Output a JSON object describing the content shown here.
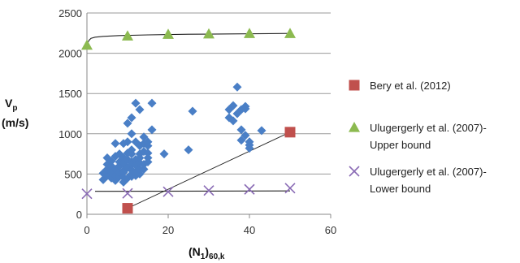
{
  "chart_data": {
    "type": "scatter",
    "title": "",
    "xlabel": {
      "main": "(N",
      "sub1": "1",
      "paren": ")",
      "sub2": "60,k"
    },
    "ylabel": {
      "line1": "V",
      "line1_sub": "p",
      "line2": "(m/s)"
    },
    "xlim": [
      0,
      60
    ],
    "ylim": [
      0,
      2500
    ],
    "x_ticks": [
      0,
      20,
      40,
      60
    ],
    "y_ticks": [
      0,
      500,
      1000,
      1500,
      2000,
      2500
    ],
    "grid": "horizontal",
    "legend_position": "right",
    "series": [
      {
        "marker": "diamond",
        "color": "#4a7fc6",
        "points": [
          [
            4,
            430
          ],
          [
            4,
            510
          ],
          [
            5,
            480
          ],
          [
            5,
            560
          ],
          [
            5,
            620
          ],
          [
            5,
            700
          ],
          [
            6,
            450
          ],
          [
            6,
            530
          ],
          [
            6,
            600
          ],
          [
            6,
            660
          ],
          [
            7,
            420
          ],
          [
            7,
            560
          ],
          [
            7,
            720
          ],
          [
            7,
            880
          ],
          [
            7,
            480
          ],
          [
            8,
            470
          ],
          [
            8,
            520
          ],
          [
            8,
            600
          ],
          [
            8,
            750
          ],
          [
            8,
            650
          ],
          [
            9,
            400
          ],
          [
            9,
            540
          ],
          [
            9,
            620
          ],
          [
            9,
            700
          ],
          [
            9,
            880
          ],
          [
            9,
            520
          ],
          [
            9,
            460
          ],
          [
            9,
            640
          ],
          [
            10,
            580
          ],
          [
            10,
            680
          ],
          [
            10,
            900
          ],
          [
            10,
            1130
          ],
          [
            10,
            450
          ],
          [
            10,
            760
          ],
          [
            11,
            470
          ],
          [
            11,
            550
          ],
          [
            11,
            650
          ],
          [
            11,
            750
          ],
          [
            11,
            1000
          ],
          [
            11,
            1200
          ],
          [
            11,
            800
          ],
          [
            11,
            620
          ],
          [
            11,
            500
          ],
          [
            12,
            480
          ],
          [
            12,
            520
          ],
          [
            12,
            680
          ],
          [
            12,
            900
          ],
          [
            12,
            1380
          ],
          [
            12,
            610
          ],
          [
            13,
            500
          ],
          [
            13,
            560
          ],
          [
            13,
            640
          ],
          [
            13,
            750
          ],
          [
            13,
            850
          ],
          [
            13,
            1300
          ],
          [
            13,
            700
          ],
          [
            14,
            560
          ],
          [
            14,
            620
          ],
          [
            14,
            780
          ],
          [
            14,
            880
          ],
          [
            14,
            960
          ],
          [
            15,
            650
          ],
          [
            15,
            700
          ],
          [
            15,
            850
          ],
          [
            15,
            900
          ],
          [
            15,
            760
          ],
          [
            16,
            1050
          ],
          [
            16,
            1380
          ],
          [
            19,
            750
          ],
          [
            25,
            800
          ],
          [
            26,
            1280
          ],
          [
            35,
            1200
          ],
          [
            35,
            1300
          ],
          [
            36,
            1350
          ],
          [
            36,
            1160
          ],
          [
            37,
            1580
          ],
          [
            37,
            1250
          ],
          [
            38,
            1300
          ],
          [
            38,
            1050
          ],
          [
            38,
            920
          ],
          [
            39,
            1340
          ],
          [
            39,
            1310
          ],
          [
            39,
            980
          ],
          [
            40,
            860
          ],
          [
            40,
            820
          ],
          [
            40,
            900
          ],
          [
            43,
            1040
          ]
        ]
      },
      {
        "name": "Bery et al. (2012)",
        "marker": "square",
        "color": "#c0504d",
        "points": [
          [
            10,
            75
          ],
          [
            50,
            1020
          ]
        ]
      },
      {
        "name": "Ulugergerly et al. (2007)-\nUpper bound",
        "marker": "triangle",
        "color": "#8cba50",
        "points": [
          [
            0,
            2100
          ],
          [
            10,
            2215
          ],
          [
            20,
            2235
          ],
          [
            30,
            2240
          ],
          [
            40,
            2245
          ],
          [
            50,
            2245
          ]
        ],
        "curve": [
          [
            0,
            2100
          ],
          [
            0.5,
            2160
          ],
          [
            1,
            2185
          ],
          [
            2,
            2200
          ],
          [
            4,
            2210
          ],
          [
            8,
            2220
          ],
          [
            15,
            2228
          ],
          [
            25,
            2236
          ],
          [
            35,
            2240
          ],
          [
            45,
            2244
          ],
          [
            50,
            2246
          ]
        ]
      },
      {
        "name": "Ulugergerly et al. (2007)-\nLower bound",
        "marker": "x",
        "color": "#8a6bb5",
        "points": [
          [
            0,
            255
          ],
          [
            10,
            260
          ],
          [
            20,
            280
          ],
          [
            30,
            295
          ],
          [
            40,
            310
          ],
          [
            50,
            325
          ]
        ],
        "line": [
          [
            2,
            285
          ],
          [
            50,
            290
          ]
        ]
      }
    ],
    "trend_line": [
      [
        10,
        75
      ],
      [
        50,
        1020
      ]
    ]
  }
}
